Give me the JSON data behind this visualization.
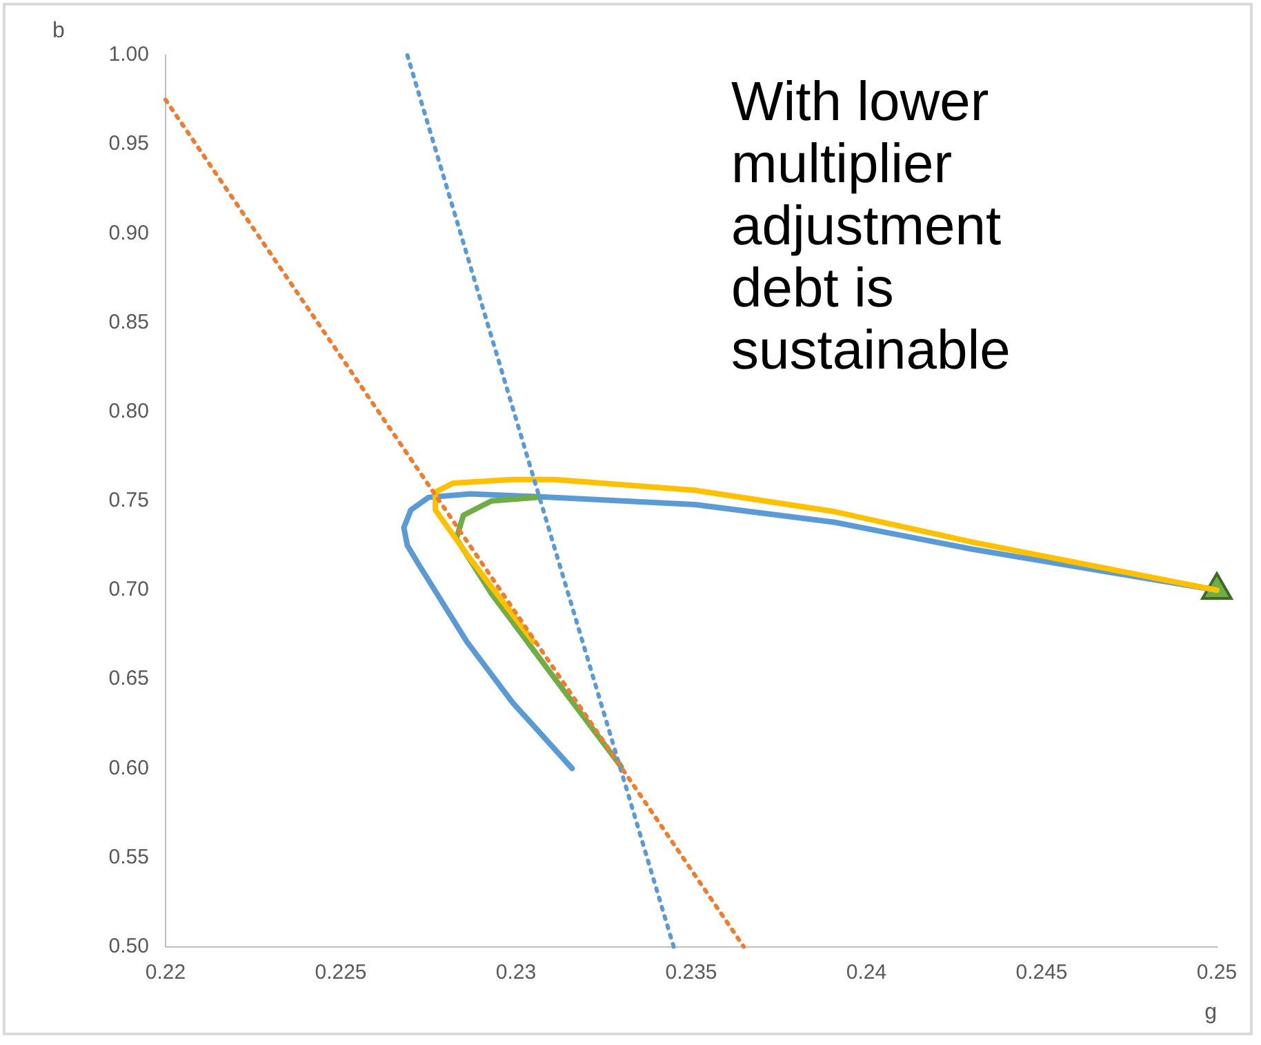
{
  "chart_data": {
    "type": "line",
    "xlabel": "g",
    "ylabel": "b",
    "annotations": [
      "With lower multiplier adjustment debt is sustainable"
    ],
    "xlim": [
      0.22,
      0.25
    ],
    "xticks": [
      {
        "value": 0.22,
        "label": "0.22"
      },
      {
        "value": 0.225,
        "label": "0.225"
      },
      {
        "value": 0.23,
        "label": "0.23"
      },
      {
        "value": 0.235,
        "label": "0.235"
      },
      {
        "value": 0.24,
        "label": "0.24"
      },
      {
        "value": 0.245,
        "label": "0.245"
      },
      {
        "value": 0.25,
        "label": "0.25"
      }
    ],
    "ylim": [
      0.5,
      1.0
    ],
    "yticks": [
      {
        "value": 0.5,
        "label": "0.50"
      },
      {
        "value": 0.55,
        "label": "0.55"
      },
      {
        "value": 0.6,
        "label": "0.60"
      },
      {
        "value": 0.65,
        "label": "0.65"
      },
      {
        "value": 0.7,
        "label": "0.70"
      },
      {
        "value": 0.75,
        "label": "0.75"
      },
      {
        "value": 0.8,
        "label": "0.80"
      },
      {
        "value": 0.85,
        "label": "0.85"
      },
      {
        "value": 0.9,
        "label": "0.90"
      },
      {
        "value": 0.95,
        "label": "0.95"
      },
      {
        "value": 1.0,
        "label": "1.00"
      }
    ],
    "grid": false,
    "legend": false,
    "marker": "none",
    "series": [
      {
        "color": "#ed7d31",
        "line_style": "dotted",
        "x": [
          0.22,
          0.2365
        ],
        "values": [
          0.975,
          0.5
        ]
      },
      {
        "color": "#5b9bd5",
        "line_style": "dotted",
        "x": [
          0.2269,
          0.2345
        ],
        "values": [
          1.0,
          0.5
        ]
      },
      {
        "color": "#ffc000",
        "line_style": "solid",
        "x": [
          0.25,
          0.243,
          0.2391,
          0.2351,
          0.2311,
          0.2299,
          0.2282,
          0.2277,
          0.2277,
          0.2286,
          0.2305
        ],
        "values": [
          0.7,
          0.727,
          0.744,
          0.756,
          0.762,
          0.762,
          0.76,
          0.755,
          0.745,
          0.72,
          0.671
        ]
      },
      {
        "color": "#70ad47",
        "line_style": "solid",
        "x": [
          0.2306,
          0.2293,
          0.2285,
          0.2283,
          0.2293,
          0.2312,
          0.233
        ],
        "values": [
          0.752,
          0.75,
          0.742,
          0.729,
          0.698,
          0.648,
          0.601
        ]
      },
      {
        "color": "#5b9bd5",
        "line_style": "solid",
        "x": [
          0.25,
          0.243,
          0.2391,
          0.2351,
          0.2311,
          0.2287,
          0.2275,
          0.227,
          0.2268,
          0.2269,
          0.2273,
          0.2286,
          0.2299,
          0.2316
        ],
        "values": [
          0.7,
          0.723,
          0.738,
          0.748,
          0.752,
          0.754,
          0.752,
          0.745,
          0.735,
          0.725,
          0.712,
          0.671,
          0.637,
          0.6
        ]
      },
      {
        "type": "scatter",
        "color": "#70ad47",
        "marker": "triangle",
        "x": [
          0.25
        ],
        "values": [
          0.7
        ]
      }
    ]
  }
}
